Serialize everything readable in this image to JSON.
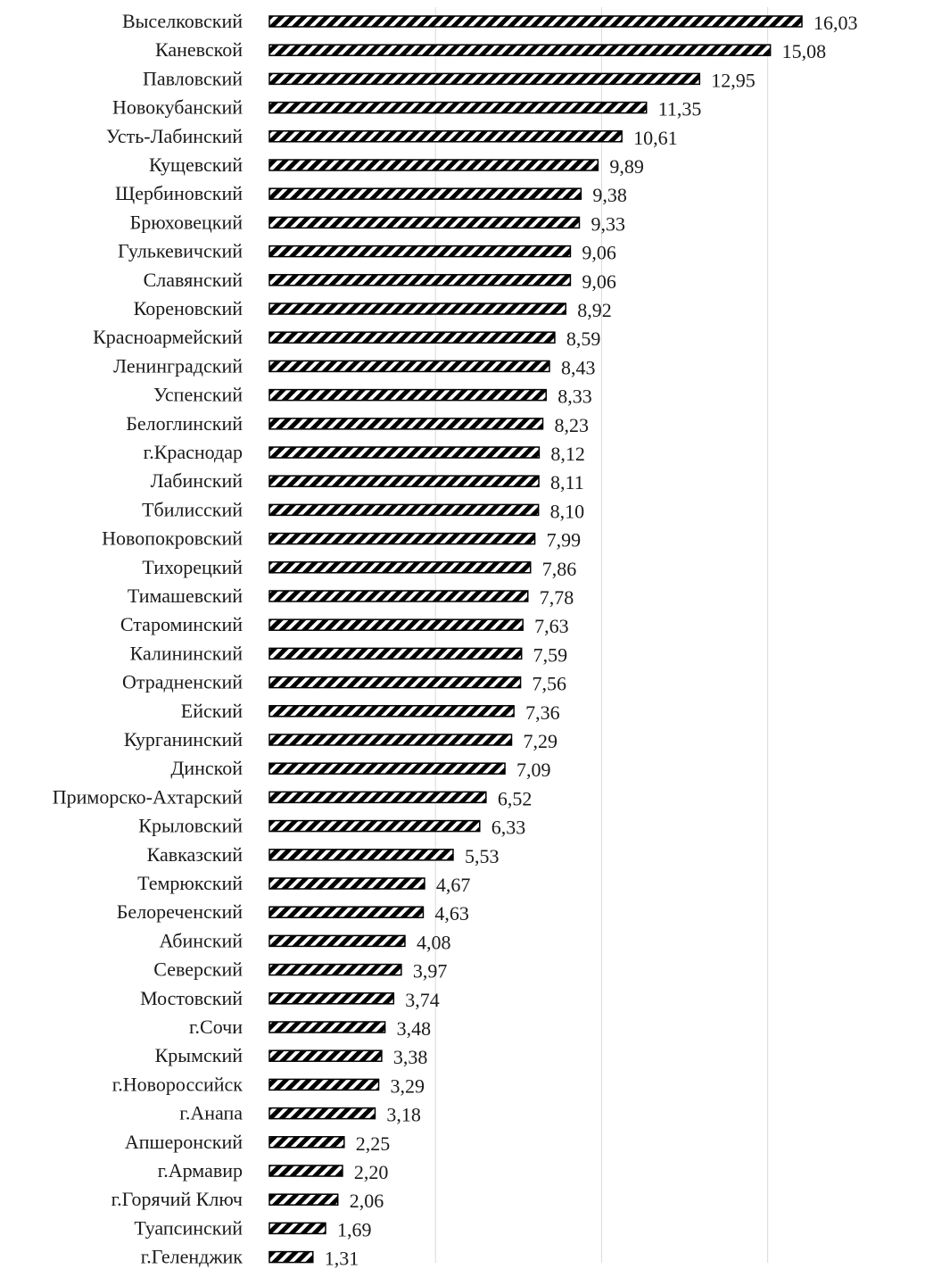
{
  "chart_data": {
    "type": "bar",
    "orientation": "horizontal",
    "title": "",
    "xlabel": "",
    "ylabel": "",
    "xlim": [
      0,
      16.03
    ],
    "grid": "vertical",
    "legend": "none",
    "bar_pattern": "diagonal-hatch",
    "colors": {
      "bar": "#000000",
      "grid": "#d9d9d9",
      "text": "#1a1a1a"
    },
    "categories": [
      "Выселковский",
      "Каневской",
      "Павловский",
      "Новокубанский",
      "Усть-Лабинский",
      "Кущевский",
      "Щербиновский",
      "Брюховецкий",
      "Гулькевичский",
      "Славянский",
      "Кореновский",
      "Красноармейский",
      "Ленинградский",
      "Успенский",
      "Белоглинский",
      "г.Краснодар",
      "Лабинский",
      "Тбилисский",
      "Новопокровский",
      "Тихорецкий",
      "Тимашевский",
      "Староминский",
      "Калининский",
      "Отрадненский",
      "Ейский",
      "Курганинский",
      "Динской",
      "Приморско-Ахтарский",
      "Крыловский",
      "Кавказский",
      "Темрюкский",
      "Белореченский",
      "Абинский",
      "Северский",
      "Мостовский",
      "г.Сочи",
      "Крымский",
      "г.Новороссийск",
      "г.Анапа",
      "Апшеронский",
      "г.Армавир",
      "г.Горячий Ключ",
      "Туапсинский",
      "г.Геленджик"
    ],
    "values": [
      16.03,
      15.08,
      12.95,
      11.35,
      10.61,
      9.89,
      9.38,
      9.33,
      9.06,
      9.06,
      8.92,
      8.59,
      8.43,
      8.33,
      8.23,
      8.12,
      8.11,
      8.1,
      7.99,
      7.86,
      7.78,
      7.63,
      7.59,
      7.56,
      7.36,
      7.29,
      7.09,
      6.52,
      6.33,
      5.53,
      4.67,
      4.63,
      4.08,
      3.97,
      3.74,
      3.48,
      3.38,
      3.29,
      3.18,
      2.25,
      2.2,
      2.06,
      1.69,
      1.31
    ],
    "value_labels": [
      "16,03",
      "15,08",
      "12,95",
      "11,35",
      "10,61",
      "9,89",
      "9,38",
      "9,33",
      "9,06",
      "9,06",
      "8,92",
      "8,59",
      "8,43",
      "8,33",
      "8,23",
      "8,12",
      "8,11",
      "8,10",
      "7,99",
      "7,86",
      "7,78",
      "7,63",
      "7,59",
      "7,56",
      "7,36",
      "7,29",
      "7,09",
      "6,52",
      "6,33",
      "5,53",
      "4,67",
      "4,63",
      "4,08",
      "3,97",
      "3,74",
      "3,48",
      "3,38",
      "3,29",
      "3,18",
      "2,25",
      "2,20",
      "2,06",
      "1,69",
      "1,31"
    ]
  }
}
